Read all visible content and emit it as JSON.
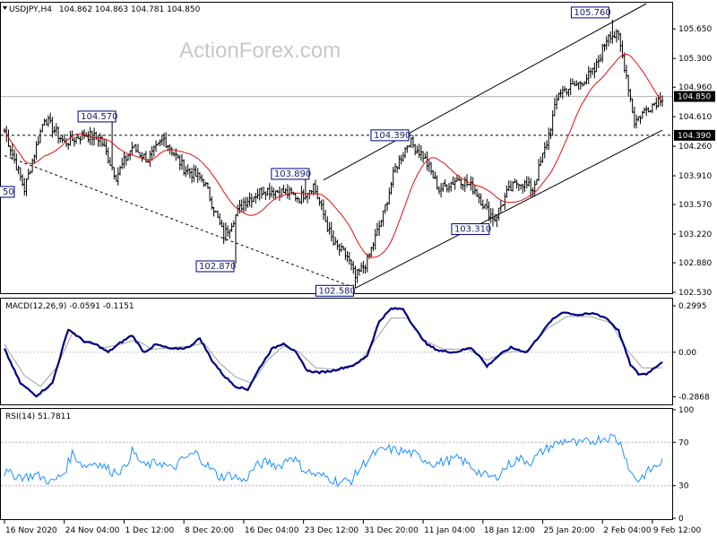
{
  "header": {
    "symbol": "USDJPY,H4",
    "ohlc": "104.862 104.863 104.781 104.850"
  },
  "watermark": "ActionForex.com",
  "colors": {
    "price_bar": "#000000",
    "ma": "#e01010",
    "macd_main": "#000080",
    "macd_signal": "#a0a0a0",
    "rsi": "#1e90ff",
    "label_box": "#000080",
    "current_price_box": "#000000"
  },
  "chart_data": [
    {
      "type": "candlestick",
      "panel": "price",
      "ylim": [
        102.53,
        105.95
      ],
      "y_ticks": [
        "105.650",
        "105.300",
        "104.960",
        "104.610",
        "104.260",
        "103.910",
        "103.570",
        "103.220",
        "102.880",
        "102.530"
      ],
      "x_labels": [
        "16 Nov 2020",
        "24 Nov 04:00",
        "1 Dec 12:00",
        "8 Dec 20:00",
        "16 Dec 04:00",
        "23 Dec 12:00",
        "31 Dec 20:00",
        "11 Jan 04:00",
        "18 Jan 12:00",
        "25 Jan 20:00",
        "2 Feb 04:00",
        "9 Feb 12:00"
      ],
      "close_anchors": [
        [
          0,
          104.45
        ],
        [
          10,
          103.75
        ],
        [
          20,
          104.6
        ],
        [
          30,
          104.3
        ],
        [
          40,
          104.4
        ],
        [
          48,
          104.35
        ],
        [
          56,
          103.9
        ],
        [
          64,
          104.25
        ],
        [
          72,
          104.1
        ],
        [
          80,
          104.35
        ],
        [
          90,
          104.0
        ],
        [
          100,
          103.85
        ],
        [
          110,
          103.2
        ],
        [
          120,
          103.6
        ],
        [
          130,
          103.75
        ],
        [
          140,
          103.72
        ],
        [
          148,
          103.65
        ],
        [
          155,
          103.8
        ],
        [
          165,
          103.1
        ],
        [
          172,
          102.95
        ],
        [
          176,
          102.7
        ],
        [
          182,
          102.9
        ],
        [
          190,
          103.45
        ],
        [
          196,
          104.0
        ],
        [
          203,
          104.32
        ],
        [
          210,
          104.15
        ],
        [
          218,
          103.75
        ],
        [
          228,
          103.88
        ],
        [
          236,
          103.75
        ],
        [
          242,
          103.5
        ],
        [
          246,
          103.4
        ],
        [
          252,
          103.7
        ],
        [
          258,
          103.85
        ],
        [
          265,
          103.75
        ],
        [
          272,
          104.3
        ],
        [
          278,
          104.9
        ],
        [
          288,
          105.0
        ],
        [
          296,
          105.15
        ],
        [
          303,
          105.6
        ],
        [
          308,
          105.55
        ],
        [
          312,
          105.1
        ],
        [
          316,
          104.55
        ],
        [
          322,
          104.7
        ],
        [
          330,
          104.85
        ]
      ],
      "current_price": "104.850",
      "level_label": "104.390",
      "level_value": 104.39,
      "annotations": [
        "104.570",
        "102.870",
        "103.890",
        "102.580",
        "104.390",
        "103.310",
        "105.760"
      ],
      "left_clipped_label": "50",
      "moving_average": "red line"
    },
    {
      "type": "line",
      "panel": "MACD",
      "title": "MACD(12,26,9) -0.0591 -0.1151",
      "y_ticks": [
        "0.2995",
        "0.00",
        "-0.2868"
      ],
      "ylim": [
        -0.33,
        0.34
      ],
      "series": [
        {
          "values_anchors": [
            [
              0,
              0.02
            ],
            [
              8,
              -0.2
            ],
            [
              16,
              -0.28
            ],
            [
              24,
              -0.2
            ],
            [
              32,
              0.15
            ],
            [
              40,
              0.07
            ],
            [
              46,
              0.05
            ],
            [
              52,
              0.0
            ],
            [
              58,
              0.06
            ],
            [
              64,
              0.11
            ],
            [
              70,
              0.0
            ],
            [
              76,
              0.05
            ],
            [
              84,
              0.02
            ],
            [
              92,
              0.03
            ],
            [
              98,
              0.09
            ],
            [
              104,
              -0.05
            ],
            [
              110,
              -0.15
            ],
            [
              116,
              -0.22
            ],
            [
              122,
              -0.24
            ],
            [
              128,
              -0.1
            ],
            [
              134,
              0.02
            ],
            [
              140,
              0.06
            ],
            [
              146,
              0.0
            ],
            [
              152,
              -0.12
            ],
            [
              158,
              -0.13
            ],
            [
              164,
              -0.12
            ],
            [
              170,
              -0.1
            ],
            [
              176,
              -0.08
            ],
            [
              182,
              -0.02
            ],
            [
              188,
              0.2
            ],
            [
              194,
              0.28
            ],
            [
              200,
              0.28
            ],
            [
              206,
              0.15
            ],
            [
              212,
              0.05
            ],
            [
              218,
              0.01
            ],
            [
              226,
              0.0
            ],
            [
              234,
              0.03
            ],
            [
              238,
              -0.02
            ],
            [
              242,
              -0.09
            ],
            [
              248,
              -0.02
            ],
            [
              254,
              0.03
            ],
            [
              262,
              0.0
            ],
            [
              268,
              0.1
            ],
            [
              274,
              0.2
            ],
            [
              280,
              0.26
            ],
            [
              288,
              0.24
            ],
            [
              296,
              0.25
            ],
            [
              302,
              0.22
            ],
            [
              308,
              0.14
            ],
            [
              314,
              -0.08
            ],
            [
              318,
              -0.14
            ],
            [
              322,
              -0.14
            ],
            [
              330,
              -0.06
            ]
          ]
        },
        {
          "values_anchors": [
            [
              0,
              0.05
            ],
            [
              10,
              -0.15
            ],
            [
              18,
              -0.22
            ],
            [
              26,
              -0.1
            ],
            [
              34,
              0.12
            ],
            [
              42,
              0.06
            ],
            [
              50,
              0.03
            ],
            [
              58,
              0.05
            ],
            [
              66,
              0.08
            ],
            [
              74,
              0.02
            ],
            [
              84,
              0.03
            ],
            [
              94,
              0.04
            ],
            [
              100,
              0.06
            ],
            [
              108,
              -0.07
            ],
            [
              116,
              -0.16
            ],
            [
              124,
              -0.2
            ],
            [
              132,
              -0.05
            ],
            [
              140,
              0.04
            ],
            [
              148,
              0.0
            ],
            [
              156,
              -0.1
            ],
            [
              166,
              -0.11
            ],
            [
              178,
              -0.07
            ],
            [
              186,
              0.08
            ],
            [
              194,
              0.22
            ],
            [
              202,
              0.22
            ],
            [
              210,
              0.08
            ],
            [
              220,
              0.02
            ],
            [
              232,
              0.02
            ],
            [
              242,
              -0.05
            ],
            [
              252,
              0.0
            ],
            [
              262,
              0.01
            ],
            [
              272,
              0.15
            ],
            [
              282,
              0.23
            ],
            [
              294,
              0.23
            ],
            [
              304,
              0.19
            ],
            [
              312,
              0.02
            ],
            [
              320,
              -0.1
            ],
            [
              330,
              -0.1
            ]
          ]
        }
      ]
    },
    {
      "type": "line",
      "panel": "RSI",
      "title": "RSI(14) 51.7811",
      "y_ticks": [
        "100",
        "70",
        "30",
        "0"
      ],
      "ylim": [
        0,
        100
      ],
      "levels": [
        70,
        30
      ],
      "series": [
        {
          "values_anchors": [
            [
              0,
              42
            ],
            [
              10,
              38
            ],
            [
              16,
              40
            ],
            [
              24,
              33
            ],
            [
              30,
              42
            ],
            [
              34,
              60
            ],
            [
              40,
              48
            ],
            [
              46,
              52
            ],
            [
              54,
              43
            ],
            [
              60,
              45
            ],
            [
              64,
              62
            ],
            [
              70,
              48
            ],
            [
              78,
              52
            ],
            [
              84,
              45
            ],
            [
              90,
              55
            ],
            [
              96,
              60
            ],
            [
              102,
              48
            ],
            [
              108,
              38
            ],
            [
              114,
              40
            ],
            [
              120,
              34
            ],
            [
              126,
              48
            ],
            [
              132,
              52
            ],
            [
              138,
              48
            ],
            [
              144,
              58
            ],
            [
              150,
              45
            ],
            [
              156,
              40
            ],
            [
              162,
              38
            ],
            [
              168,
              33
            ],
            [
              174,
              35
            ],
            [
              180,
              50
            ],
            [
              186,
              60
            ],
            [
              192,
              64
            ],
            [
              198,
              62
            ],
            [
              204,
              60
            ],
            [
              210,
              55
            ],
            [
              216,
              50
            ],
            [
              222,
              53
            ],
            [
              228,
              55
            ],
            [
              234,
              48
            ],
            [
              240,
              40
            ],
            [
              246,
              37
            ],
            [
              252,
              48
            ],
            [
              258,
              55
            ],
            [
              264,
              52
            ],
            [
              270,
              62
            ],
            [
              276,
              68
            ],
            [
              282,
              72
            ],
            [
              288,
              68
            ],
            [
              294,
              71
            ],
            [
              300,
              74
            ],
            [
              306,
              75
            ],
            [
              310,
              66
            ],
            [
              314,
              42
            ],
            [
              318,
              35
            ],
            [
              322,
              42
            ],
            [
              330,
              52
            ]
          ]
        }
      ]
    }
  ]
}
